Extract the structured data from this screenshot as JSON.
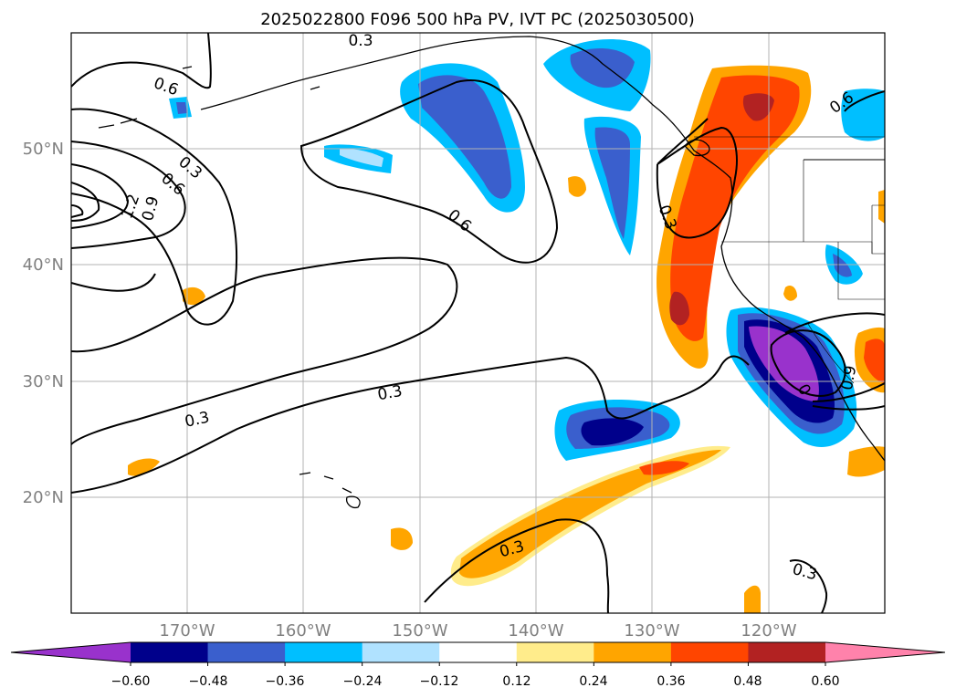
{
  "title": "2025022800 F096 500 hPa PV, IVT PC (2025030500)",
  "lat_labels": [
    "50°N",
    "40°N",
    "30°N",
    "20°N"
  ],
  "lon_labels": [
    "170°W",
    "160°W",
    "150°W",
    "140°W",
    "130°W",
    "120°W"
  ],
  "contour_labels": [
    "0.3",
    "0.6",
    "0.3",
    "0.6",
    "1.2",
    "0.9",
    "0.6",
    "0.3",
    "0.3",
    "0.3",
    "0.6",
    "0.3",
    "0.9",
    "0"
  ],
  "colorbar": {
    "tick_labels": [
      "−0.60",
      "−0.48",
      "−0.36",
      "−0.24",
      "−0.12",
      "0.12",
      "0.24",
      "0.36",
      "0.48",
      "0.60"
    ],
    "colors": [
      "#9932cc",
      "#00008b",
      "#3a5fcd",
      "#00bfff",
      "#b0e2ff",
      "#ffffff",
      "#ffec8b",
      "#ffa500",
      "#ff4500",
      "#b22222",
      "#ff82ab"
    ]
  },
  "map": {
    "lat_range": [
      10,
      60
    ],
    "lon_range": [
      -180,
      -110
    ],
    "gridlines": true
  }
}
